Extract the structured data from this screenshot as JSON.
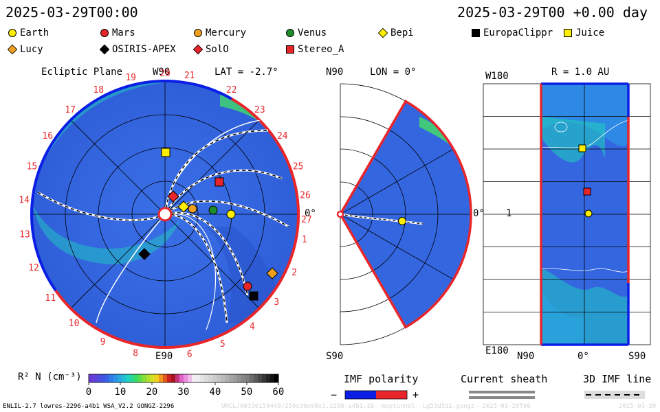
{
  "header": {
    "datetime_left": "2025-03-29T00:00",
    "datetime_right": "2025-03-29T00 +0.00 day"
  },
  "legend": [
    {
      "name": "Earth",
      "shape": "circle",
      "color": "#ffee00"
    },
    {
      "name": "Mars",
      "shape": "circle",
      "color": "#e8262a"
    },
    {
      "name": "Mercury",
      "shape": "circle",
      "color": "#f0a020"
    },
    {
      "name": "Venus",
      "shape": "circle",
      "color": "#1e8c2a"
    },
    {
      "name": "Bepi",
      "shape": "diamond",
      "color": "#ffee00"
    },
    {
      "name": "EuropaClippr",
      "shape": "square",
      "color": "#000000"
    },
    {
      "name": "Juice",
      "shape": "square",
      "color": "#ffee00"
    },
    {
      "name": "Lucy",
      "shape": "diamond",
      "color": "#f0a020"
    },
    {
      "name": "OSIRIS-APEX",
      "shape": "diamond",
      "color": "#000000"
    },
    {
      "name": "SolO",
      "shape": "diamond",
      "color": "#e8262a"
    },
    {
      "name": "Stereo_A",
      "shape": "square",
      "color": "#e8262a"
    }
  ],
  "panels": {
    "ecliptic": {
      "title": "Ecliptic Plane",
      "w90": "W90",
      "lat": "LAT = -2.7°",
      "e90": "E90",
      "zero": "0°",
      "carrington_numbers": [
        "1",
        "2",
        "3",
        "4",
        "5",
        "6",
        "8",
        "9",
        "10",
        "11",
        "12",
        "13",
        "14",
        "15",
        "16",
        "17",
        "18",
        "19",
        "20",
        "21",
        "22",
        "23",
        "24",
        "25",
        "26",
        "27"
      ]
    },
    "meridional": {
      "n90": "N90",
      "lon": "LON = 0°",
      "s90": "S90",
      "zero": "0°"
    },
    "radial": {
      "title": "R = 1.0 AU",
      "w180": "W180",
      "e180": "E180",
      "one": "1",
      "n90": "N90",
      "zero": "0°",
      "s90": "S90"
    }
  },
  "colorbar": {
    "label": "R² N (cm⁻³)",
    "ticks": [
      "0",
      "10",
      "20",
      "30",
      "40",
      "50",
      "60"
    ]
  },
  "imf_polarity": {
    "label": "IMF polarity",
    "minus": "−",
    "plus": "+",
    "colors": [
      "#0a1ee6",
      "#e8262a"
    ]
  },
  "current_sheath": {
    "label": "Current sheath"
  },
  "imf_line": {
    "label": "3D IMF line"
  },
  "footer": {
    "model": "ENLIL-2.7 lowres-2296-a4b1 WSA_V2.2 GONGZ-2296",
    "run": "UNCL/00330154440/256x30x90x1.2296-a4b1.16--moptunnel--Lg53d5d2.gongz--2025-03-29T00",
    "date": "2025-03-30"
  }
}
